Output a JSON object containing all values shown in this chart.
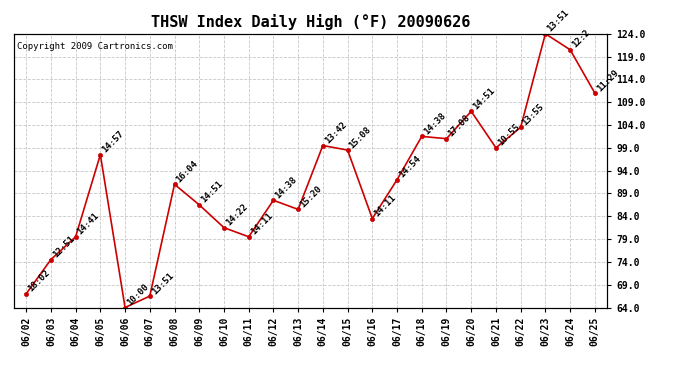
{
  "title": "THSW Index Daily High (°F) 20090626",
  "copyright": "Copyright 2009 Cartronics.com",
  "x_labels": [
    "06/02",
    "06/03",
    "06/04",
    "06/05",
    "06/06",
    "06/07",
    "06/08",
    "06/09",
    "06/10",
    "06/11",
    "06/12",
    "06/13",
    "06/14",
    "06/15",
    "06/16",
    "06/17",
    "06/18",
    "06/19",
    "06/20",
    "06/21",
    "06/22",
    "06/23",
    "06/24",
    "06/25"
  ],
  "y_values": [
    67.0,
    74.5,
    79.5,
    97.5,
    64.0,
    66.5,
    91.0,
    86.5,
    81.5,
    79.5,
    87.5,
    85.5,
    99.5,
    98.5,
    83.5,
    92.0,
    101.5,
    101.0,
    107.0,
    99.0,
    103.5,
    124.0,
    120.5,
    111.0
  ],
  "annotations": [
    "18:02",
    "12:51",
    "14:41",
    "14:57",
    "10:00",
    "13:51",
    "16:04",
    "14:51",
    "14:22",
    "14:11",
    "14:38",
    "15:20",
    "13:42",
    "15:08",
    "14:11",
    "14:54",
    "14:38",
    "17:08",
    "14:51",
    "10:55",
    "13:55",
    "13:51",
    "12:2",
    "11:29"
  ],
  "y_min": 64.0,
  "y_max": 124.0,
  "y_ticks": [
    64.0,
    69.0,
    74.0,
    79.0,
    84.0,
    89.0,
    94.0,
    99.0,
    104.0,
    109.0,
    114.0,
    119.0,
    124.0
  ],
  "line_color": "#cc0000",
  "marker_color": "#cc0000",
  "background_color": "#ffffff",
  "grid_color": "#c8c8c8",
  "title_fontsize": 11,
  "annotation_fontsize": 6.5,
  "copyright_fontsize": 6.5
}
